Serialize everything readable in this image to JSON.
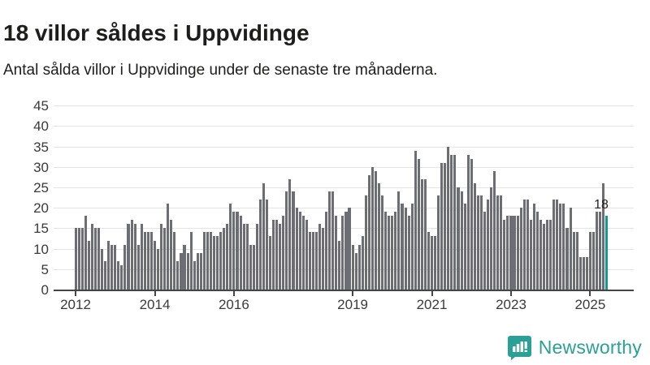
{
  "header": {
    "title": "18 villor såldes i Uppvidinge",
    "subtitle": "Antal sålda villor i Uppvidinge under de senaste tre månaderna."
  },
  "chart_data": {
    "type": "bar",
    "title": "18 villor såldes i Uppvidinge",
    "xlabel": "",
    "ylabel": "",
    "x_unit": "month",
    "x_range_note": "monthly bars from 2012 to mid 2025",
    "ylim": [
      0,
      45
    ],
    "grid": true,
    "yticks": [
      0,
      5,
      10,
      15,
      20,
      25,
      30,
      35,
      40,
      45
    ],
    "xticks": [
      {
        "label": "2012",
        "month_index": 0
      },
      {
        "label": "2014",
        "month_index": 24
      },
      {
        "label": "2016",
        "month_index": 48
      },
      {
        "label": "2019",
        "month_index": 84
      },
      {
        "label": "2021",
        "month_index": 108
      },
      {
        "label": "2023",
        "month_index": 132
      },
      {
        "label": "2025",
        "month_index": 156
      }
    ],
    "values": [
      15,
      15,
      15,
      18,
      12,
      16,
      15,
      15,
      10,
      7,
      12,
      11,
      11,
      7,
      6,
      11,
      16,
      17,
      16,
      11,
      16,
      14,
      14,
      14,
      12,
      10,
      16,
      15,
      21,
      17,
      14,
      7,
      9,
      11,
      9,
      14,
      7,
      9,
      9,
      14,
      14,
      14,
      13,
      13,
      14,
      15,
      16,
      21,
      19,
      19,
      18,
      16,
      16,
      11,
      11,
      16,
      22,
      26,
      22,
      13,
      17,
      17,
      16,
      18,
      24,
      27,
      24,
      20,
      19,
      18,
      17,
      14,
      14,
      14,
      16,
      15,
      19,
      24,
      24,
      18,
      12,
      18,
      19,
      20,
      11,
      9,
      11,
      13,
      23,
      28,
      30,
      29,
      26,
      23,
      19,
      18,
      18,
      19,
      24,
      21,
      20,
      18,
      21,
      34,
      32,
      27,
      27,
      14,
      13,
      13,
      23,
      31,
      31,
      35,
      33,
      33,
      25,
      24,
      21,
      33,
      32,
      26,
      23,
      23,
      19,
      22,
      25,
      29,
      23,
      23,
      17,
      18,
      18,
      18,
      18,
      20,
      22,
      22,
      17,
      21,
      19,
      17,
      16,
      17,
      17,
      22,
      22,
      21,
      21,
      15,
      20,
      14,
      14,
      8,
      8,
      8,
      14,
      14,
      19,
      19,
      26,
      18
    ],
    "highlight_last": {
      "value": 18,
      "label": "18",
      "color": "#0d9b94"
    },
    "bar_color": "#6d6d76",
    "annotation_label": "18"
  },
  "colors": {
    "accent_teal": "#0d9b94",
    "bar_gray": "#6d6d76",
    "gridline": "#e4e4e4",
    "axis": "#454545",
    "text": "#1d1d1b",
    "brand_teal": "#2aa096"
  },
  "footer": {
    "brand": "Newsworthy"
  }
}
